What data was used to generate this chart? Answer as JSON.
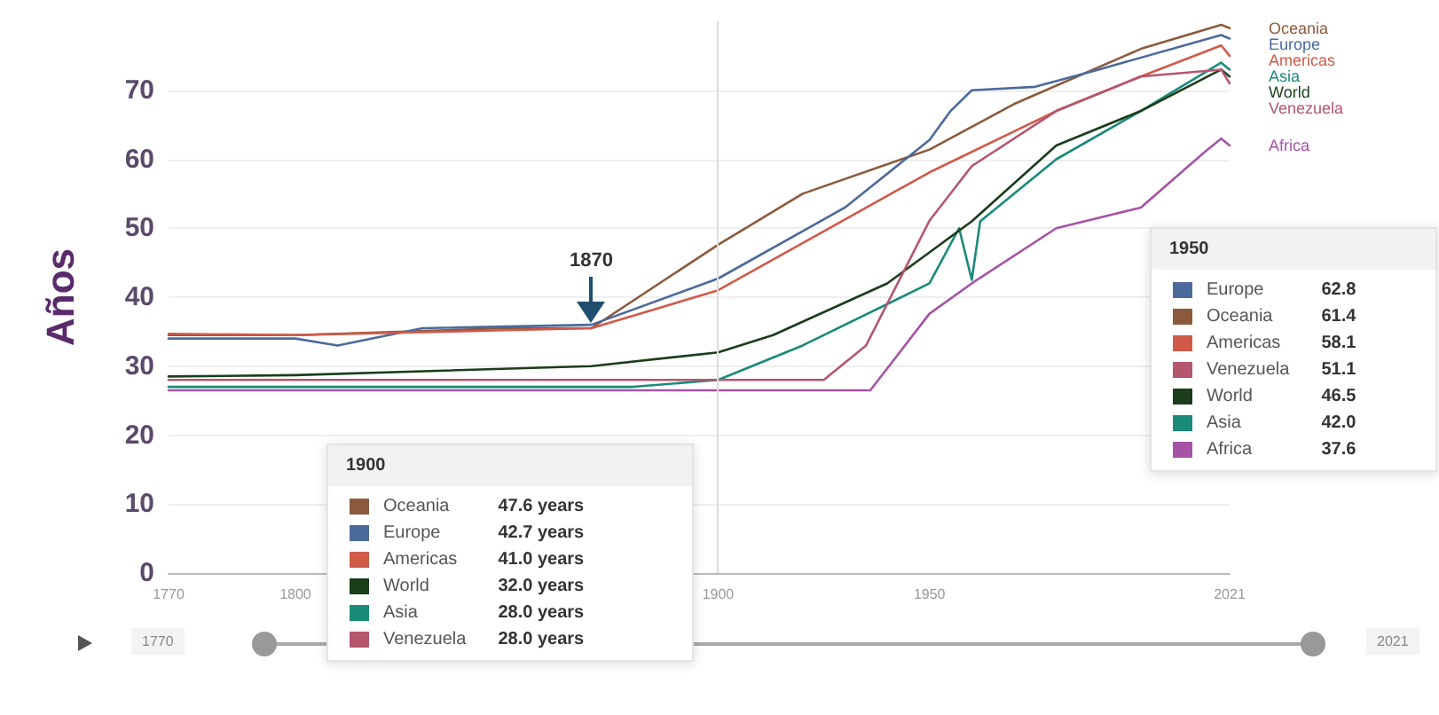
{
  "chart_data": [
    {
      "type": "line",
      "ylabel": "Años",
      "xlim": [
        1770,
        2021
      ],
      "xticks": [
        1770,
        1800,
        1900,
        1950,
        2021
      ],
      "ylim": [
        0,
        80
      ],
      "yticks": [
        0,
        10,
        20,
        30,
        40,
        50,
        60,
        70
      ],
      "grid": "y",
      "legend": false,
      "ref_lines": [
        {
          "axis": "x",
          "value": 1900,
          "color": "#dddddd"
        }
      ],
      "annotations": [
        {
          "text": "1870",
          "x": 1870,
          "y": 36
        },
        "1770",
        "2021"
      ],
      "series": [
        {
          "name": "Oceania",
          "color": "#8b5a3c",
          "x": [
            1770,
            1800,
            1850,
            1870,
            1900,
            1920,
            1950,
            1970,
            2000,
            2019,
            2021
          ],
          "values": [
            34.5,
            34.5,
            35.5,
            35.5,
            47.6,
            55,
            61.4,
            68,
            76,
            79.5,
            79
          ]
        },
        {
          "name": "Europe",
          "color": "#4c6a9c",
          "x": [
            1770,
            1800,
            1810,
            1830,
            1870,
            1900,
            1930,
            1950,
            1955,
            1960,
            1975,
            1990,
            2019,
            2021
          ],
          "values": [
            34,
            34,
            33,
            35.5,
            36,
            42.7,
            53,
            62.8,
            67,
            70,
            70.5,
            73,
            78,
            77.5
          ]
        },
        {
          "name": "Americas",
          "color": "#d05a4a",
          "x": [
            1770,
            1800,
            1870,
            1900,
            1950,
            1980,
            2000,
            2019,
            2021
          ],
          "values": [
            34.7,
            34.5,
            35.5,
            41.0,
            58.1,
            67,
            72,
            76.5,
            75
          ]
        },
        {
          "name": "Asia",
          "color": "#1a8a7a",
          "x": [
            1770,
            1880,
            1900,
            1920,
            1950,
            1957,
            1960,
            1962,
            1980,
            2000,
            2019,
            2021
          ],
          "values": [
            27,
            27,
            28.0,
            33,
            42.0,
            50,
            42.5,
            51,
            60,
            67,
            74,
            73
          ]
        },
        {
          "name": "World",
          "color": "#1b3d1b",
          "x": [
            1770,
            1800,
            1870,
            1900,
            1913,
            1940,
            1950,
            1960,
            1980,
            2000,
            2019,
            2021
          ],
          "values": [
            28.5,
            28.7,
            30,
            32.0,
            34.5,
            42,
            46.5,
            51,
            62,
            67,
            73,
            72
          ]
        },
        {
          "name": "Venezuela",
          "color": "#b4566e",
          "x": [
            1770,
            1900,
            1925,
            1935,
            1950,
            1960,
            1980,
            2000,
            2019,
            2021
          ],
          "values": [
            28,
            28.0,
            28,
            33,
            51.1,
            59,
            67,
            72,
            73,
            71
          ]
        },
        {
          "name": "Africa",
          "color": "#a653a6",
          "x": [
            1770,
            1936,
            1950,
            1960,
            1980,
            2000,
            2015,
            2019,
            2021
          ],
          "values": [
            26.5,
            26.5,
            37.6,
            42,
            50,
            53,
            61,
            63,
            62
          ]
        }
      ]
    },
    {
      "type": "other",
      "title": "1900",
      "categories": [
        "Oceania",
        "Europe",
        "Americas",
        "World",
        "Asia",
        "Venezuela"
      ],
      "colors": [
        "#8b5a3c",
        "#4c6a9c",
        "#d05a4a",
        "#1b3d1b",
        "#1a8a7a",
        "#b4566e"
      ],
      "value_labels": [
        "47.6 years",
        "42.7 years",
        "41.0 years",
        "32.0 years",
        "28.0 years",
        "28.0 years"
      ]
    },
    {
      "type": "other",
      "title": "1950",
      "categories": [
        "Europe",
        "Oceania",
        "Americas",
        "Venezuela",
        "World",
        "Asia",
        "Africa"
      ],
      "colors": [
        "#4c6a9c",
        "#8b5a3c",
        "#d05a4a",
        "#b4566e",
        "#1b3d1b",
        "#1a8a7a",
        "#a653a6"
      ],
      "value_labels": [
        "62.8",
        "61.4",
        "58.1",
        "51.1",
        "46.5",
        "42.0",
        "37.6"
      ]
    }
  ]
}
